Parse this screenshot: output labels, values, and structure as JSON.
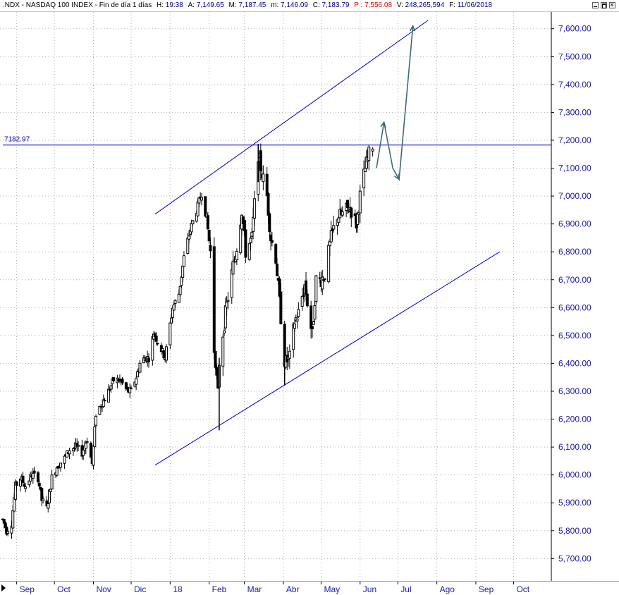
{
  "header": {
    "symbol": ".NDX - NASDAQ 100 INDEX - Fin de día 1 días",
    "hour_label": "H:",
    "hour_value": "19:38",
    "open_label": "A:",
    "open_value": "7,149.65",
    "high_label": "M:",
    "high_value": "7,187.45",
    "low_label": "m:",
    "low_value": "7,146.09",
    "close_label": "C:",
    "close_value": "7,183.79",
    "p_label": "P :",
    "p_value": "7,556.08",
    "volume_label": "V:",
    "volume_value": "248,265,594",
    "date_label": "F:",
    "date_value": "11/06/2018"
  },
  "colors": {
    "label": "#000000",
    "value": "#000080",
    "p_value": "#e00000",
    "axis_text": "#1a1aa6",
    "trendline": "#0000cc",
    "projection": "#3d6b73",
    "grid": "#b0b0b0",
    "candle": "#000000"
  },
  "chart_data": {
    "type": "candlestick",
    "title": ".NDX - NASDAQ 100 INDEX",
    "y_range": [
      5620,
      7660
    ],
    "y_ticks": [
      "5,700.00",
      "5,800.00",
      "5,900.00",
      "6,000.00",
      "6,100.00",
      "6,200.00",
      "6,300.00",
      "6,400.00",
      "6,500.00",
      "6,600.00",
      "6,700.00",
      "6,800.00",
      "6,900.00",
      "7,000.00",
      "7,100.00",
      "7,200.00",
      "7,300.00",
      "7,400.00",
      "7,500.00",
      "7,600.00"
    ],
    "x_range": [
      "2017-08-21",
      "2018-10-31"
    ],
    "x_ticks": [
      {
        "label": "Sep",
        "date": "2017-09-01"
      },
      {
        "label": "Oct",
        "date": "2017-10-01"
      },
      {
        "label": "Nov",
        "date": "2017-11-01"
      },
      {
        "label": "Dic",
        "date": "2017-12-01"
      },
      {
        "label": "18",
        "date": "2018-01-01"
      },
      {
        "label": "Feb",
        "date": "2018-02-01"
      },
      {
        "label": "Mar",
        "date": "2018-03-01"
      },
      {
        "label": "Abr",
        "date": "2018-04-01"
      },
      {
        "label": "May",
        "date": "2018-05-01"
      },
      {
        "label": "Jun",
        "date": "2018-06-01"
      },
      {
        "label": "Jul",
        "date": "2018-07-01"
      },
      {
        "label": "Ago",
        "date": "2018-08-01"
      },
      {
        "label": "Sep",
        "date": "2018-09-01"
      },
      {
        "label": "Oct",
        "date": "2018-10-01"
      }
    ],
    "price_path": [
      [
        "2017-08-21",
        5840
      ],
      [
        "2017-08-24",
        5800
      ],
      [
        "2017-08-28",
        5830
      ],
      [
        "2017-08-31",
        5960
      ],
      [
        "2017-09-04",
        5990
      ],
      [
        "2017-09-08",
        5960
      ],
      [
        "2017-09-13",
        6000
      ],
      [
        "2017-09-18",
        5990
      ],
      [
        "2017-09-21",
        5910
      ],
      [
        "2017-09-25",
        5880
      ],
      [
        "2017-09-29",
        5990
      ],
      [
        "2017-10-03",
        6030
      ],
      [
        "2017-10-09",
        6060
      ],
      [
        "2017-10-13",
        6090
      ],
      [
        "2017-10-18",
        6100
      ],
      [
        "2017-10-23",
        6080
      ],
      [
        "2017-10-27",
        6130
      ],
      [
        "2017-10-31",
        6040
      ],
      [
        "2017-11-03",
        6220
      ],
      [
        "2017-11-08",
        6260
      ],
      [
        "2017-11-13",
        6300
      ],
      [
        "2017-11-17",
        6340
      ],
      [
        "2017-11-22",
        6340
      ],
      [
        "2017-11-28",
        6300
      ],
      [
        "2017-12-01",
        6300
      ],
      [
        "2017-12-05",
        6350
      ],
      [
        "2017-12-08",
        6400
      ],
      [
        "2017-12-12",
        6420
      ],
      [
        "2017-12-15",
        6420
      ],
      [
        "2017-12-19",
        6510
      ],
      [
        "2017-12-22",
        6480
      ],
      [
        "2017-12-28",
        6420
      ],
      [
        "2018-01-03",
        6600
      ],
      [
        "2018-01-08",
        6650
      ],
      [
        "2018-01-12",
        6780
      ],
      [
        "2018-01-17",
        6880
      ],
      [
        "2018-01-22",
        6950
      ],
      [
        "2018-01-26",
        7010
      ],
      [
        "2018-01-30",
        6920
      ],
      [
        "2018-02-02",
        6800
      ],
      [
        "2018-02-05",
        6450
      ],
      [
        "2018-02-08",
        6300
      ],
      [
        "2018-02-09",
        6400
      ],
      [
        "2018-02-14",
        6580
      ],
      [
        "2018-02-20",
        6750
      ],
      [
        "2018-02-23",
        6820
      ],
      [
        "2018-02-27",
        6950
      ],
      [
        "2018-03-02",
        6800
      ],
      [
        "2018-03-07",
        6850
      ],
      [
        "2018-03-12",
        7150
      ],
      [
        "2018-03-15",
        7080
      ],
      [
        "2018-03-19",
        7000
      ],
      [
        "2018-03-22",
        6850
      ],
      [
        "2018-03-26",
        6780
      ],
      [
        "2018-03-29",
        6620
      ],
      [
        "2018-04-02",
        6400
      ],
      [
        "2018-04-06",
        6420
      ],
      [
        "2018-04-10",
        6550
      ],
      [
        "2018-04-13",
        6580
      ],
      [
        "2018-04-18",
        6680
      ],
      [
        "2018-04-20",
        6620
      ],
      [
        "2018-04-24",
        6500
      ],
      [
        "2018-04-27",
        6700
      ],
      [
        "2018-05-01",
        6700
      ],
      [
        "2018-05-04",
        6720
      ],
      [
        "2018-05-09",
        6850
      ],
      [
        "2018-05-14",
        6930
      ],
      [
        "2018-05-17",
        6930
      ],
      [
        "2018-05-21",
        6950
      ],
      [
        "2018-05-24",
        6960
      ],
      [
        "2018-05-29",
        6900
      ],
      [
        "2018-06-01",
        7000
      ],
      [
        "2018-06-05",
        7100
      ],
      [
        "2018-06-08",
        7150
      ],
      [
        "2018-06-11",
        7184
      ]
    ],
    "lines": [
      {
        "kind": "horizontal",
        "value": 7182.97,
        "label": "7182.97",
        "from": "2017-08-21",
        "to": "2018-10-31"
      },
      {
        "kind": "channel-upper",
        "from": [
          "2017-12-20",
          6935
        ],
        "to": [
          "2018-07-25",
          7630
        ]
      },
      {
        "kind": "channel-lower",
        "from": [
          "2017-12-20",
          6035
        ],
        "to": [
          "2018-09-20",
          6800
        ]
      }
    ],
    "projection": [
      [
        "2018-06-14",
        7100
      ],
      [
        "2018-06-20",
        7265
      ],
      [
        "2018-06-27",
        7100
      ],
      [
        "2018-07-02",
        7060
      ],
      [
        "2018-07-13",
        7610
      ]
    ]
  }
}
